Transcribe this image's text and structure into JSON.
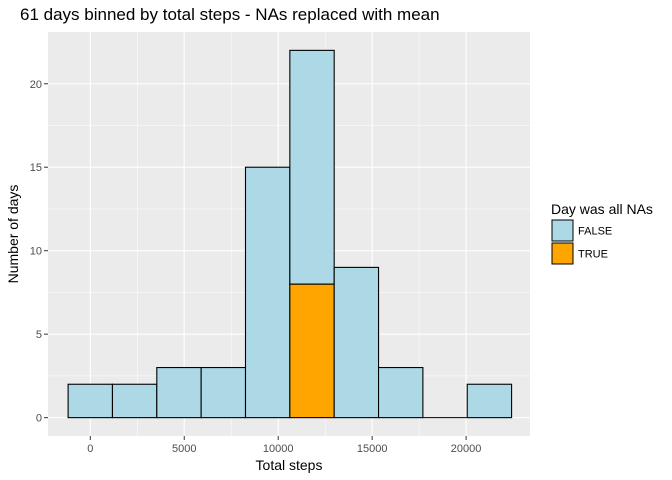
{
  "chart_data": {
    "type": "bar",
    "title": "61 days binned by total steps - NAs replaced with mean",
    "xlabel": "Total steps",
    "ylabel": "Number of days",
    "xlim": [
      -2250,
      23400
    ],
    "ylim": [
      -1.1,
      23.1
    ],
    "x_ticks": [
      0,
      5000,
      10000,
      15000,
      20000
    ],
    "y_ticks": [
      0,
      5,
      10,
      15,
      20
    ],
    "x_tick_labels": [
      "0",
      "5000",
      "10000",
      "15000",
      "20000"
    ],
    "y_tick_labels": [
      "0",
      "5",
      "10",
      "15",
      "20"
    ],
    "stacked": true,
    "grid": true,
    "bins": [
      {
        "x0": -1180,
        "x1": 1180,
        "false": 2,
        "true": 0
      },
      {
        "x0": 1180,
        "x1": 3540,
        "false": 2,
        "true": 0
      },
      {
        "x0": 3540,
        "x1": 5900,
        "false": 3,
        "true": 0
      },
      {
        "x0": 5900,
        "x1": 8260,
        "false": 3,
        "true": 0
      },
      {
        "x0": 8260,
        "x1": 10620,
        "false": 15,
        "true": 0
      },
      {
        "x0": 10620,
        "x1": 12980,
        "false": 14,
        "true": 8
      },
      {
        "x0": 12980,
        "x1": 15340,
        "false": 9,
        "true": 0
      },
      {
        "x0": 15340,
        "x1": 17700,
        "false": 3,
        "true": 0
      },
      {
        "x0": 17700,
        "x1": 20060,
        "false": 0,
        "true": 0
      },
      {
        "x0": 20060,
        "x1": 22420,
        "false": 2,
        "true": 0
      }
    ],
    "series": [
      {
        "name": "FALSE",
        "color": "#add8e6"
      },
      {
        "name": "TRUE",
        "color": "#ffa500"
      }
    ],
    "legend": {
      "title": "Day was all NAs",
      "placement": "right"
    }
  },
  "colors": {
    "panel": "#ebebeb",
    "grid_major": "#ffffff",
    "bar_outline": "#000000"
  }
}
